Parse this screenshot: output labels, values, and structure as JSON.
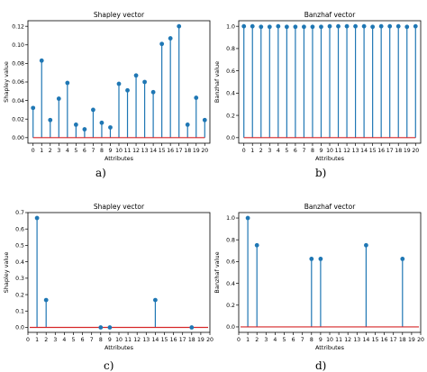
{
  "colors": {
    "stem": "#1f77b4",
    "marker": "#1f77b4",
    "baseline": "#d62728",
    "axis": "#000000"
  },
  "panel_labels": [
    "a)",
    "b)",
    "c)",
    "d)"
  ],
  "chart_data": [
    {
      "type": "stem",
      "title": "Shapley vector",
      "xlabel": "Attributes",
      "ylabel": "Shapley value",
      "x": [
        0,
        1,
        2,
        3,
        4,
        5,
        6,
        7,
        8,
        9,
        10,
        11,
        12,
        13,
        14,
        15,
        16,
        17,
        18,
        19,
        20
      ],
      "values": [
        0.032,
        0.083,
        0.019,
        0.042,
        0.059,
        0.014,
        0.009,
        0.03,
        0.016,
        0.011,
        0.058,
        0.051,
        0.067,
        0.06,
        0.049,
        0.101,
        0.107,
        0.12,
        0.014,
        0.043,
        0.019
      ],
      "xticks": [
        "0",
        "1",
        "2",
        "3",
        "4",
        "5",
        "6",
        "7",
        "8",
        "9",
        "10",
        "11",
        "12",
        "13",
        "14",
        "15",
        "16",
        "17",
        "18",
        "19",
        "20"
      ],
      "yticks": [
        "0.00",
        "0.02",
        "0.04",
        "0.06",
        "0.08",
        "0.10",
        "0.12"
      ],
      "ytick_values": [
        0,
        0.02,
        0.04,
        0.06,
        0.08,
        0.1,
        0.12
      ],
      "xlim": [
        -0.6,
        20.6
      ],
      "ylim": [
        -0.006,
        0.126
      ],
      "baseline": 0
    },
    {
      "type": "stem",
      "title": "Banzhaf vector",
      "xlabel": "Attributes",
      "ylabel": "Banzhaf value",
      "x": [
        0,
        1,
        2,
        3,
        4,
        5,
        6,
        7,
        8,
        9,
        10,
        11,
        12,
        13,
        14,
        15,
        16,
        17,
        18,
        19,
        20
      ],
      "values": [
        1.0,
        1.0,
        0.995,
        0.995,
        1.0,
        0.995,
        0.995,
        0.995,
        0.995,
        0.995,
        1.0,
        1.0,
        1.0,
        1.0,
        1.0,
        0.995,
        1.0,
        1.0,
        1.0,
        0.995,
        1.0
      ],
      "xticks": [
        "0",
        "1",
        "2",
        "3",
        "4",
        "5",
        "6",
        "7",
        "8",
        "9",
        "10",
        "11",
        "12",
        "13",
        "14",
        "15",
        "16",
        "17",
        "18",
        "19",
        "20"
      ],
      "yticks": [
        "0.0",
        "0.2",
        "0.4",
        "0.6",
        "0.8",
        "1.0"
      ],
      "ytick_values": [
        0,
        0.2,
        0.4,
        0.6,
        0.8,
        1.0
      ],
      "xlim": [
        -0.6,
        20.6
      ],
      "ylim": [
        -0.05,
        1.05
      ],
      "baseline": 0
    },
    {
      "type": "stem",
      "title": "Shapley vector",
      "xlabel": "Attributes",
      "ylabel": "Shapley value",
      "x": [
        1,
        2,
        8,
        9,
        14,
        18
      ],
      "values": [
        0.667,
        0.167,
        0.0,
        0.0,
        0.167,
        0.0
      ],
      "xticks": [
        "0",
        "1",
        "2",
        "3",
        "4",
        "5",
        "6",
        "7",
        "8",
        "9",
        "10",
        "11",
        "12",
        "13",
        "14",
        "15",
        "16",
        "17",
        "18",
        "19",
        "20"
      ],
      "xtick_values": [
        0,
        1,
        2,
        3,
        4,
        5,
        6,
        7,
        8,
        9,
        10,
        11,
        12,
        13,
        14,
        15,
        16,
        17,
        18,
        19,
        20
      ],
      "yticks": [
        "0.0",
        "0.1",
        "0.2",
        "0.3",
        "0.4",
        "0.5",
        "0.6",
        "0.7"
      ],
      "ytick_values": [
        0,
        0.1,
        0.2,
        0.3,
        0.4,
        0.5,
        0.6,
        0.7
      ],
      "xlim": [
        0,
        20
      ],
      "ylim": [
        -0.03,
        0.7
      ],
      "baseline": 0
    },
    {
      "type": "stem",
      "title": "Banzhaf vector",
      "xlabel": "Attributes",
      "ylabel": "Banzhaf value",
      "x": [
        1,
        2,
        8,
        9,
        14,
        18
      ],
      "values": [
        1.0,
        0.75,
        0.625,
        0.625,
        0.75,
        0.625
      ],
      "xticks": [
        "0",
        "1",
        "2",
        "3",
        "4",
        "5",
        "6",
        "7",
        "8",
        "9",
        "10",
        "11",
        "12",
        "13",
        "14",
        "15",
        "16",
        "17",
        "18",
        "19",
        "20"
      ],
      "xtick_values": [
        0,
        1,
        2,
        3,
        4,
        5,
        6,
        7,
        8,
        9,
        10,
        11,
        12,
        13,
        14,
        15,
        16,
        17,
        18,
        19,
        20
      ],
      "yticks": [
        "0.0",
        "0.2",
        "0.4",
        "0.6",
        "0.8",
        "1.0"
      ],
      "ytick_values": [
        0,
        0.2,
        0.4,
        0.6,
        0.8,
        1.0
      ],
      "xlim": [
        0,
        20
      ],
      "ylim": [
        -0.05,
        1.05
      ],
      "baseline": 0
    }
  ]
}
